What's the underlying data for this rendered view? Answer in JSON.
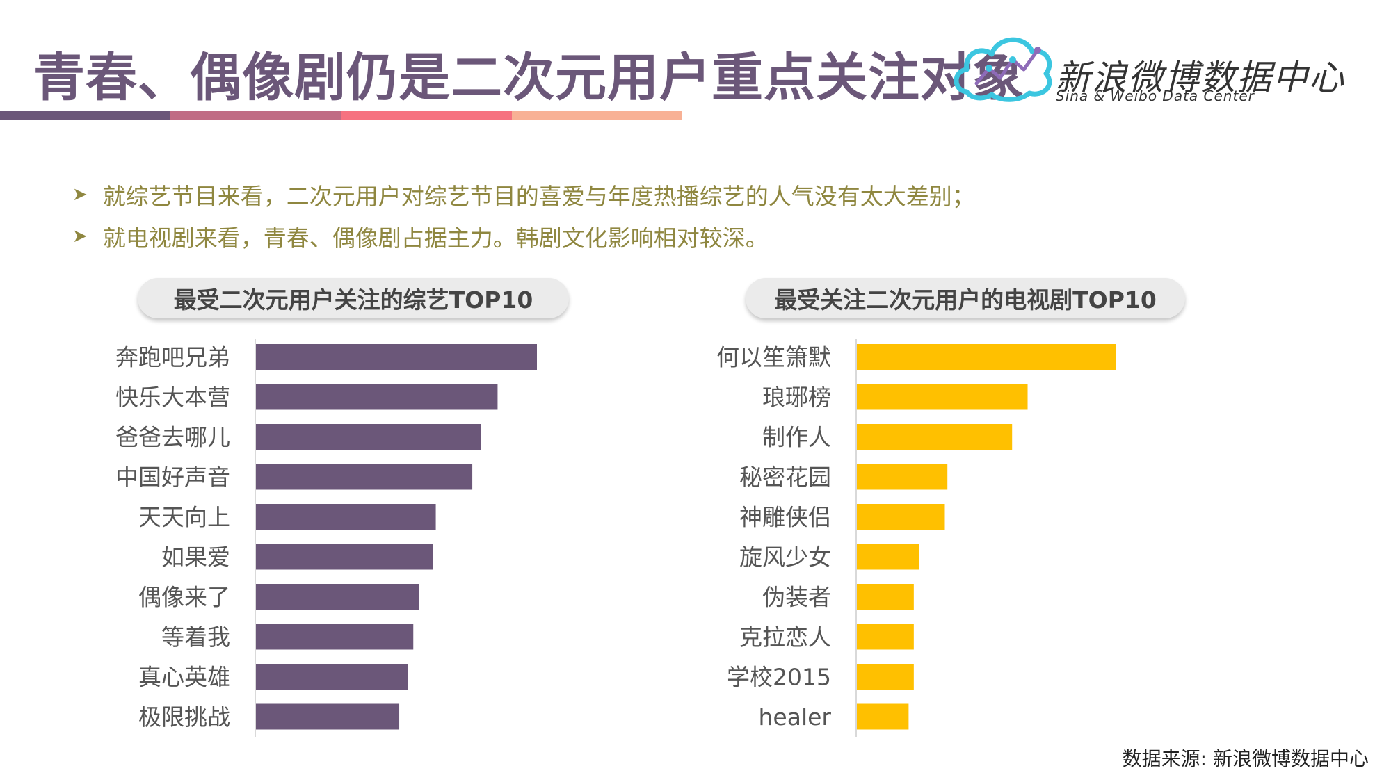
{
  "header": {
    "title": "青春、偶像剧仍是二次元用户重点关注对象",
    "stripe_colors": [
      "#6b5779",
      "#c06c84",
      "#f67280",
      "#f8b195"
    ]
  },
  "logo": {
    "name_cn": "新浪微博数据中心",
    "name_en": "Sina & Weibo Data Center",
    "accent_color": "#3cc6e0"
  },
  "bullets": [
    "就综艺节目来看，二次元用户对综艺节目的喜爱与年度热播综艺的人气没有太大差别；",
    "就电视剧来看，青春、偶像剧占据主力。韩剧文化影响相对较深。"
  ],
  "footer": {
    "source": "数据来源: 新浪微博数据中心"
  },
  "chart_data": [
    {
      "type": "bar",
      "orientation": "horizontal",
      "title": "最受二次元用户关注的综艺TOP10",
      "categories": [
        "奔跑吧兄弟",
        "快乐大本营",
        "爸爸去哪儿",
        "中国好声音",
        "天天向上",
        "如果爱",
        "偶像来了",
        "等着我",
        "真心英雄",
        "极限挑战"
      ],
      "values": [
        100,
        86,
        80,
        77,
        64,
        63,
        58,
        56,
        54,
        51
      ],
      "xlim": [
        0,
        100
      ],
      "color": "#6b5779"
    },
    {
      "type": "bar",
      "orientation": "horizontal",
      "title": "最受关注二次元用户的电视剧TOP10",
      "categories": [
        "何以笙箫默",
        "琅琊榜",
        "制作人",
        "秘密花园",
        "神雕侠侣",
        "旋风少女",
        "伪装者",
        "克拉恋人",
        "学校2015",
        "healer"
      ],
      "values": [
        100,
        66,
        60,
        35,
        34,
        24,
        22,
        22,
        22,
        20
      ],
      "xlim": [
        0,
        100
      ],
      "color": "#ffc000"
    }
  ]
}
